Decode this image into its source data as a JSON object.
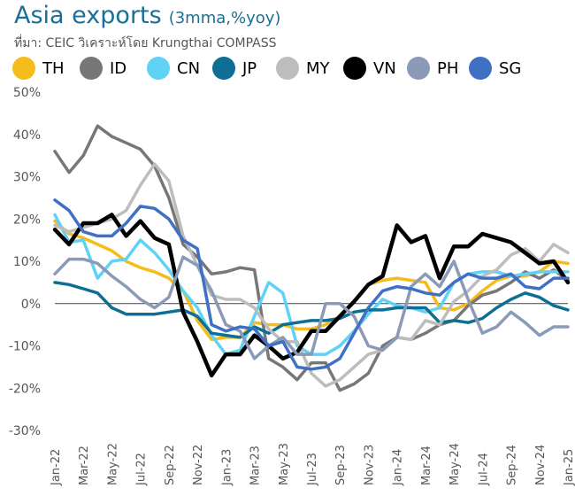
{
  "header": {
    "title": "Asia exports",
    "subtitle": "(3mma,%yoy)",
    "source": "ที่มา: CEIC วิเคราะห์โดย Krungthai COMPASS"
  },
  "chart_data": {
    "type": "line",
    "title": "Asia exports",
    "subtitle": "(3mma,%yoy)",
    "ylim": [
      -30,
      50
    ],
    "y_ticks": [
      -30,
      -20,
      -10,
      0,
      10,
      20,
      30,
      40,
      50
    ],
    "y_tick_labels": [
      "-30%",
      "-20%",
      "-10%",
      "0%",
      "10%",
      "20%",
      "30%",
      "40%",
      "50%"
    ],
    "x_tick_labels": [
      "Jan-22",
      "Mar-22",
      "May-22",
      "Jul-22",
      "Sep-22",
      "Nov-22",
      "Jan-23",
      "Mar-23",
      "May-23",
      "Jul-23",
      "Sep-23",
      "Nov-23",
      "Jan-24",
      "Mar-24",
      "May-24",
      "Jul-24",
      "Sep-24",
      "Nov-24",
      "Jan-25"
    ],
    "grid": false,
    "zero_line": true,
    "legend_position": "top",
    "x": [
      "Jan-22",
      "Feb-22",
      "Mar-22",
      "Apr-22",
      "May-22",
      "Jun-22",
      "Jul-22",
      "Aug-22",
      "Sep-22",
      "Oct-22",
      "Nov-22",
      "Dec-22",
      "Jan-23",
      "Feb-23",
      "Mar-23",
      "Apr-23",
      "May-23",
      "Jun-23",
      "Jul-23",
      "Aug-23",
      "Sep-23",
      "Oct-23",
      "Nov-23",
      "Dec-23",
      "Jan-24",
      "Feb-24",
      "Mar-24",
      "Apr-24",
      "May-24",
      "Jun-24",
      "Jul-24",
      "Aug-24",
      "Sep-24",
      "Oct-24",
      "Nov-24",
      "Dec-24",
      "Jan-25"
    ],
    "series": [
      {
        "name": "TH",
        "color": "#f5bc1c",
        "width": 3.5,
        "values": [
          19.5,
          16.5,
          15.5,
          14,
          12.5,
          10,
          8.5,
          7.5,
          6,
          3,
          -4,
          -8.5,
          -8,
          -8,
          -4.5,
          -5,
          -5,
          -6,
          -6,
          -5,
          -3,
          0.5,
          4.5,
          5.5,
          6,
          5.5,
          5,
          -1,
          -1.5,
          0,
          3,
          5.5,
          6.5,
          6.5,
          7.5,
          10,
          9.5
        ]
      },
      {
        "name": "ID",
        "color": "#777777",
        "width": 3.5,
        "values": [
          36,
          31,
          35,
          42,
          39.5,
          38,
          36.5,
          32.5,
          25,
          14,
          11,
          7,
          7.5,
          8.5,
          8,
          -13,
          -15,
          -18,
          -14,
          -14,
          -20.5,
          -19,
          -16.5,
          -10,
          -8,
          -8.5,
          -7,
          -5,
          -4,
          -0.5,
          2,
          3,
          5,
          7.5,
          6,
          8,
          5.5
        ]
      },
      {
        "name": "CN",
        "color": "#5fd2f5",
        "width": 3.5,
        "values": [
          21,
          14.5,
          15,
          6,
          10,
          10.5,
          15,
          12,
          8,
          3,
          -1,
          -7.5,
          -12,
          -11,
          -3,
          5,
          2.5,
          -10,
          -12,
          -12,
          -10,
          -6.5,
          -2.5,
          1,
          -0.5,
          -1,
          -2,
          -1,
          5,
          7,
          7.5,
          7.5,
          6.5,
          7,
          7.5,
          7.5,
          7.5
        ]
      },
      {
        "name": "JP",
        "color": "#0d6f93",
        "width": 3.5,
        "values": [
          5,
          4.5,
          3.5,
          2.5,
          -1,
          -2.5,
          -2.5,
          -2.5,
          -2,
          -1.5,
          -3,
          -7,
          -7.5,
          -8,
          -5.5,
          -7,
          -5,
          -4.5,
          -4,
          -4,
          -3.5,
          -2,
          -1.5,
          -1.5,
          -1,
          -1,
          -1,
          -4.5,
          -4,
          -4.5,
          -3.5,
          -1,
          1,
          2.5,
          1.5,
          -0.5,
          -1.5
        ]
      },
      {
        "name": "MY",
        "color": "#bdbdbd",
        "width": 3.5,
        "values": [
          18.5,
          17,
          18,
          19,
          20,
          22,
          28,
          33,
          29,
          16,
          9,
          2,
          1,
          1,
          -1,
          -6,
          -9,
          -9,
          -16.5,
          -19.5,
          -18,
          -15,
          -12,
          -11,
          -8,
          -8.5,
          -4,
          -5,
          0.5,
          3,
          6.5,
          8,
          11.5,
          13,
          10,
          14,
          12
        ]
      },
      {
        "name": "VN",
        "color": "#000000",
        "width": 4.5,
        "values": [
          17.5,
          14,
          19,
          19,
          21,
          16,
          19.5,
          15.5,
          14,
          -2,
          -9,
          -17,
          -12,
          -12,
          -7.5,
          -10,
          -13,
          -11.5,
          -6.5,
          -6.5,
          -3,
          0.5,
          4.5,
          6.5,
          18.5,
          14.5,
          16,
          6,
          13.5,
          13.5,
          16.5,
          15.5,
          14.5,
          12,
          9.5,
          10,
          5
        ]
      },
      {
        "name": "PH",
        "color": "#8a9ab7",
        "width": 3.5,
        "values": [
          7,
          10.5,
          10.5,
          9.5,
          6.5,
          4,
          1,
          -1,
          1.5,
          11,
          9,
          3,
          -5,
          -6.5,
          -13,
          -10,
          -8,
          -12,
          -12,
          0,
          0,
          -3,
          -10,
          -11,
          -8,
          4,
          7,
          4,
          10,
          1,
          -7,
          -5.5,
          -2,
          -4.5,
          -7.5,
          -5.5,
          -5.5
        ]
      },
      {
        "name": "SG",
        "color": "#4070c4",
        "width": 3.5,
        "values": [
          24.5,
          22,
          17,
          16,
          16,
          19,
          23,
          22.5,
          20,
          15,
          13,
          -5,
          -6.5,
          -5.5,
          -6,
          -10,
          -9,
          -15,
          -15.5,
          -15,
          -13,
          -7,
          -1,
          3,
          4,
          3.5,
          2.5,
          2,
          5,
          7,
          6,
          6,
          7,
          4,
          3.5,
          6,
          6
        ]
      }
    ]
  }
}
